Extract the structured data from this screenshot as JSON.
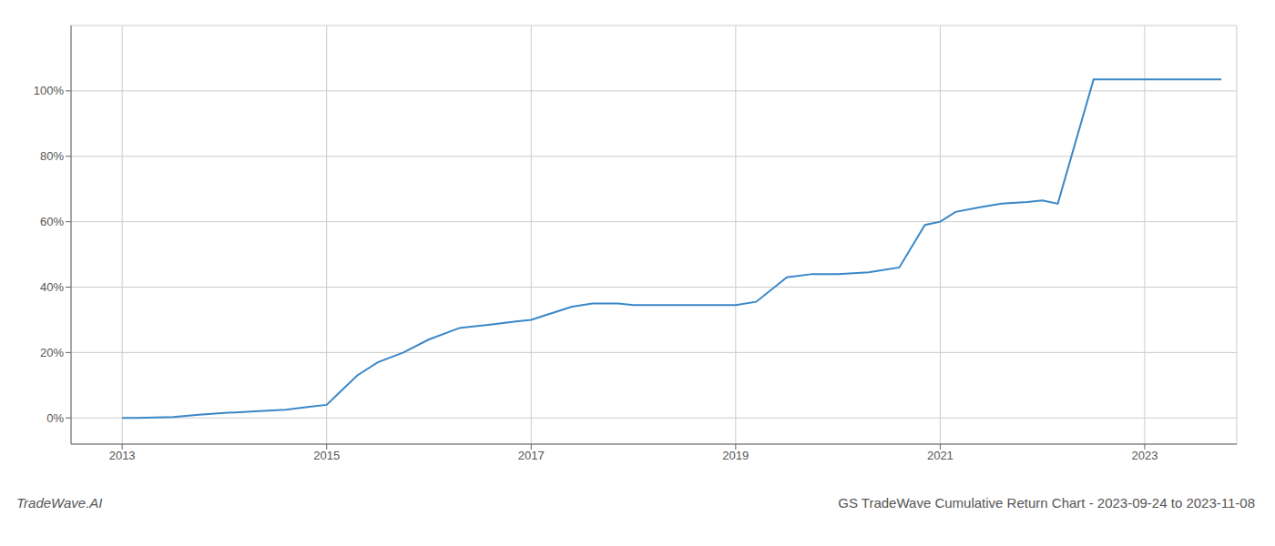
{
  "chart_data": {
    "type": "line",
    "title": "GS TradeWave Cumulative Return Chart - 2023-09-24 to 2023-11-08",
    "annotations": [
      "TradeWave.AI"
    ],
    "x": [
      2013.0,
      2013.15,
      2013.5,
      2013.75,
      2014.0,
      2014.3,
      2014.6,
      2014.85,
      2015.0,
      2015.1,
      2015.3,
      2015.5,
      2015.75,
      2016.0,
      2016.3,
      2016.6,
      2016.85,
      2017.0,
      2017.15,
      2017.4,
      2017.6,
      2017.85,
      2018.0,
      2018.3,
      2018.6,
      2018.85,
      2019.0,
      2019.2,
      2019.5,
      2019.75,
      2020.0,
      2020.3,
      2020.6,
      2020.85,
      2021.0,
      2021.15,
      2021.4,
      2021.6,
      2021.85,
      2022.0,
      2022.15,
      2022.5,
      2022.75,
      2023.0,
      2023.5,
      2023.75
    ],
    "values": [
      0.0,
      0.0,
      0.3,
      1.0,
      1.5,
      2.0,
      2.5,
      3.5,
      4.0,
      7.0,
      13.0,
      17.0,
      20.0,
      24.0,
      27.5,
      28.5,
      29.5,
      30.0,
      31.5,
      34.0,
      35.0,
      35.0,
      34.5,
      34.5,
      34.5,
      34.5,
      34.5,
      35.5,
      43.0,
      44.0,
      44.0,
      44.5,
      46.0,
      59.0,
      60.0,
      63.0,
      64.5,
      65.5,
      66.0,
      66.5,
      65.5,
      103.5,
      103.5,
      103.5,
      103.5,
      103.5
    ],
    "color": "#3a87c8",
    "xlim": [
      2012.5,
      2023.9
    ],
    "ylim": [
      -8,
      120
    ],
    "xticks": [
      2013,
      2015,
      2017,
      2019,
      2021,
      2023
    ],
    "yticks": [
      {
        "value": 0,
        "label": "0%"
      },
      {
        "value": 20,
        "label": "20%"
      },
      {
        "value": 40,
        "label": "40%"
      },
      {
        "value": 60,
        "label": "60%"
      },
      {
        "value": 80,
        "label": "80%"
      },
      {
        "value": 100,
        "label": "100%"
      }
    ],
    "grid": true
  }
}
